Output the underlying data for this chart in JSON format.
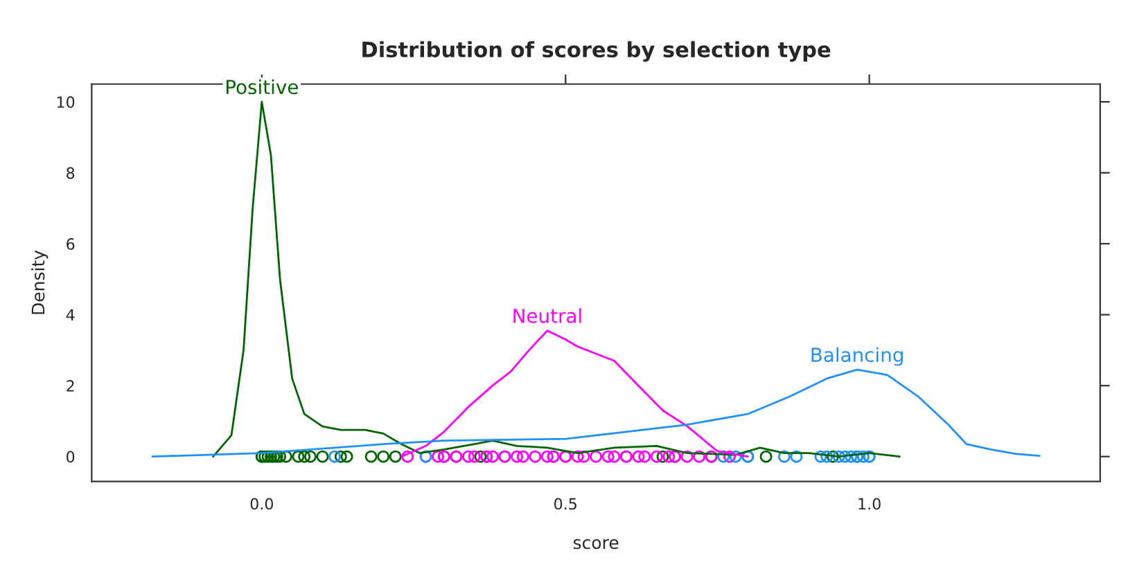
{
  "chart_data": {
    "type": "line",
    "title": "Distribution of scores by selection type",
    "xlabel": "score",
    "ylabel": "Density",
    "xlim": [
      -0.28,
      1.38
    ],
    "ylim": [
      -0.7,
      10.5
    ],
    "xticks": [
      {
        "value": 0,
        "label": "0.0"
      },
      {
        "value": 0.5,
        "label": "0.5"
      },
      {
        "value": 1,
        "label": "1.0"
      }
    ],
    "yticks": [
      0,
      2,
      4,
      6,
      8,
      10
    ],
    "grid": false,
    "legend": false,
    "marker": "none",
    "line_style": "solid",
    "series": [
      {
        "name": "Positive",
        "color": "#006400",
        "x": [
          -0.08,
          -0.05,
          -0.03,
          -0.015,
          0,
          0.015,
          0.03,
          0.05,
          0.07,
          0.1,
          0.13,
          0.17,
          0.2,
          0.23,
          0.26,
          0.3,
          0.35,
          0.38,
          0.42,
          0.47,
          0.52,
          0.58,
          0.65,
          0.7,
          0.78,
          0.82,
          0.86,
          0.9,
          0.95,
          1.0,
          1.05
        ],
        "values": [
          0,
          0.6,
          3,
          7,
          10,
          8.5,
          5,
          2.2,
          1.2,
          0.85,
          0.75,
          0.75,
          0.65,
          0.35,
          0.1,
          0.2,
          0.35,
          0.45,
          0.3,
          0.25,
          0.1,
          0.25,
          0.3,
          0.1,
          0.05,
          0.25,
          0.1,
          0.1,
          0,
          0.1,
          0
        ]
      },
      {
        "name": "Neutral",
        "color": "#ff00ff",
        "x": [
          0.23,
          0.27,
          0.3,
          0.34,
          0.38,
          0.41,
          0.44,
          0.47,
          0.5,
          0.52,
          0.55,
          0.58,
          0.62,
          0.66,
          0.7,
          0.75,
          0.8
        ],
        "values": [
          0,
          0.3,
          0.7,
          1.4,
          2.0,
          2.4,
          3.0,
          3.55,
          3.3,
          3.1,
          2.9,
          2.7,
          2.0,
          1.3,
          0.86,
          0.15,
          0
        ]
      },
      {
        "name": "Balancing",
        "color": "#1e90ff",
        "x": [
          -0.18,
          0,
          0.2,
          0.3,
          0.5,
          0.6,
          0.7,
          0.8,
          0.87,
          0.93,
          0.98,
          1.03,
          1.08,
          1.13,
          1.16,
          1.2,
          1.24,
          1.28
        ],
        "values": [
          0,
          0.1,
          0.35,
          0.45,
          0.5,
          0.7,
          0.9,
          1.2,
          1.7,
          2.2,
          2.45,
          2.3,
          1.7,
          0.9,
          0.35,
          0.2,
          0.08,
          0.02
        ]
      },
      {
        "type": "scatter",
        "marker": "circle",
        "color": "#006400",
        "x": [
          0,
          0,
          0.005,
          0.01,
          0.015,
          0.02,
          0.025,
          0.03,
          0.04,
          0.06,
          0.07,
          0.08,
          0.1,
          0.13,
          0.14,
          0.18,
          0.2,
          0.22,
          0.3,
          0.32,
          0.36,
          0.37,
          0.4,
          0.48,
          0.5,
          0.6,
          0.66,
          0.68,
          0.74,
          0.8,
          0.83,
          0.94,
          0.98
        ],
        "values": [
          0,
          0,
          0,
          0,
          0,
          0,
          0,
          0,
          0,
          0,
          0,
          0,
          0,
          0,
          0,
          0,
          0,
          0,
          0,
          0,
          0,
          0,
          0,
          0,
          0,
          0,
          0,
          0,
          0,
          0,
          0,
          0,
          0
        ]
      },
      {
        "type": "scatter",
        "marker": "circle",
        "color": "#ff00ff",
        "x": [
          0.24,
          0.27,
          0.29,
          0.3,
          0.32,
          0.34,
          0.35,
          0.37,
          0.38,
          0.4,
          0.42,
          0.43,
          0.45,
          0.47,
          0.48,
          0.5,
          0.52,
          0.53,
          0.55,
          0.57,
          0.58,
          0.6,
          0.62,
          0.63,
          0.65,
          0.67,
          0.68,
          0.7,
          0.72,
          0.74,
          0.77
        ],
        "values": [
          0,
          0,
          0,
          0,
          0,
          0,
          0,
          0,
          0,
          0,
          0,
          0,
          0,
          0,
          0,
          0,
          0,
          0,
          0,
          0,
          0,
          0,
          0,
          0,
          0,
          0,
          0,
          0,
          0,
          0,
          0
        ]
      },
      {
        "type": "scatter",
        "marker": "circle",
        "color": "#1e90ff",
        "x": [
          0.12,
          0.27,
          0.76,
          0.78,
          0.8,
          0.86,
          0.88,
          0.92,
          0.93,
          0.95,
          0.96,
          0.97,
          0.98,
          0.99,
          1.0,
          1.0
        ],
        "values": [
          0,
          0,
          0,
          0,
          0,
          0,
          0,
          0,
          0,
          0,
          0,
          0,
          0,
          0,
          0,
          0
        ]
      }
    ]
  }
}
